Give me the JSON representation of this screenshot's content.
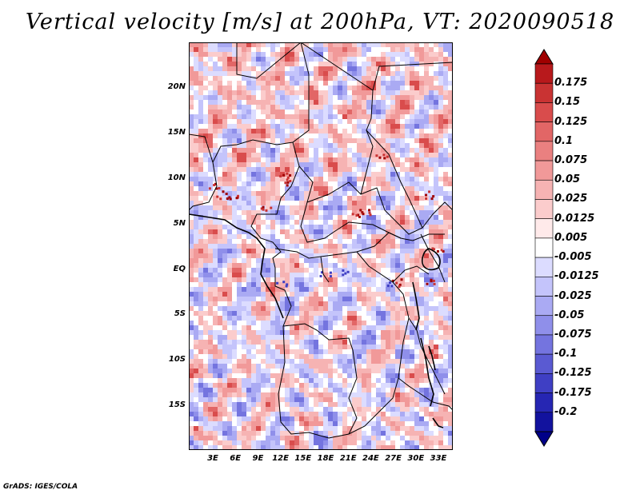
{
  "title": "Vertical velocity [m/s] at 200hPa, VT: 2020090518",
  "footer": "GrADS: IGES/COLA",
  "map": {
    "type": "filled-contour-map",
    "variable": "Vertical velocity",
    "units": "m/s",
    "level": "200hPa",
    "valid_time": "2020090518",
    "lon_ticks": [
      "3E",
      "6E",
      "9E",
      "12E",
      "15E",
      "18E",
      "21E",
      "24E",
      "27E",
      "30E",
      "33E"
    ],
    "lat_ticks": [
      "20N",
      "15N",
      "10N",
      "5N",
      "EQ",
      "5S",
      "10S",
      "15S"
    ]
  },
  "colorbar": {
    "labels": [
      "0.175",
      "0.15",
      "0.125",
      "0.1",
      "0.075",
      "0.05",
      "0.025",
      "0.0125",
      "0.005",
      "-0.005",
      "-0.0125",
      "-0.025",
      "-0.05",
      "-0.075",
      "-0.1",
      "-0.125",
      "-0.175",
      "-0.2"
    ],
    "colors": [
      "#a00000",
      "#b8191c",
      "#c93333",
      "#d94c4c",
      "#e26666",
      "#ea8080",
      "#f19999",
      "#f6b3b3",
      "#fbcccc",
      "#ffeaea",
      "#ffffff",
      "#dcdcff",
      "#c4c4fb",
      "#aaaaf3",
      "#8f8fea",
      "#7474df",
      "#5a5ad2",
      "#3f3fc4",
      "#2626b3",
      "#12129e",
      "#000088"
    ]
  }
}
